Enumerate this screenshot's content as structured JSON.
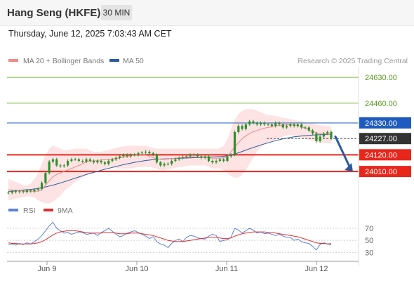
{
  "header": {
    "title": "Hang Seng (HKFE)",
    "timeframe": "30 MIN",
    "datetime": "Thursday, June 12, 2025 7:03:43 AM CET"
  },
  "legend": {
    "ma20_label": "MA 20 + Bollinger Bands",
    "ma50_label": "MA 50",
    "credit": "Research © 2025 Trading Central",
    "rsi_label": "RSI",
    "ma9_label": "9MA"
  },
  "colors": {
    "ma20": "#f08a8a",
    "ma50": "#2c5aa0",
    "bollinger_fill": "#fde3e3",
    "resistance": "#7cba3c",
    "pivot": "#1e5bbf",
    "support": "#e8261c",
    "current": "#333333",
    "candle": "#2f8f2f",
    "arrow": "#2c5aa0",
    "rsi": "#5b83d6",
    "rsi_ma": "#e03030"
  },
  "chart_data": [
    {
      "type": "candlestick",
      "title": "",
      "x_labels": [
        "Jun 9",
        "Jun 10",
        "Jun 11",
        "Jun 12"
      ],
      "ylim": [
        23830,
        24700
      ],
      "levels": [
        {
          "value": 24630,
          "label": "24630.00",
          "kind": "resistance"
        },
        {
          "value": 24460,
          "label": "24460.00",
          "kind": "resistance"
        },
        {
          "value": 24330,
          "label": "24330.00",
          "kind": "pivot"
        },
        {
          "value": 24227,
          "label": "24227.00",
          "kind": "current"
        },
        {
          "value": 24120,
          "label": "24120.00",
          "kind": "support"
        },
        {
          "value": 24010,
          "label": "24010.00",
          "kind": "support"
        }
      ],
      "close_series": [
        23870,
        23880,
        23875,
        23880,
        23875,
        23885,
        23880,
        23890,
        23895,
        23935,
        24000,
        24075,
        24090,
        24050,
        24045,
        24050,
        24080,
        24090,
        24090,
        24080,
        24075,
        24090,
        24080,
        24070,
        24080,
        24070,
        24060,
        24080,
        24090,
        24100,
        24110,
        24120,
        24110,
        24120,
        24120,
        24130,
        24135,
        24140,
        24130,
        24120,
        24070,
        24050,
        24060,
        24060,
        24080,
        24090,
        24100,
        24105,
        24110,
        24120,
        24120,
        24110,
        24100,
        24110,
        24080,
        24070,
        24080,
        24090,
        24080,
        24110,
        24120,
        24270,
        24310,
        24290,
        24320,
        24340,
        24330,
        24320,
        24330,
        24320,
        24320,
        24310,
        24330,
        24320,
        24300,
        24310,
        24320,
        24310,
        24320,
        24300,
        24300,
        24280,
        24260,
        24210,
        24240,
        24260,
        24270,
        24227
      ],
      "ma20": [
        23890,
        23888,
        23886,
        23884,
        23882,
        23881,
        23880,
        23880,
        23880,
        23890,
        23920,
        23950,
        23975,
        23990,
        24000,
        24010,
        24020,
        24030,
        24040,
        24050,
        24060,
        24075,
        24080,
        24080,
        24082,
        24085,
        24088,
        24090,
        24092,
        24095,
        24100,
        24105,
        24110,
        24115,
        24118,
        24120,
        24120,
        24118,
        24110,
        24100,
        24095,
        24090,
        24090,
        24092,
        24095,
        24098,
        24100,
        24102,
        24104,
        24105,
        24106,
        24106,
        24105,
        24104,
        24100,
        24098,
        24097,
        24098,
        24100,
        24110,
        24140,
        24170,
        24200,
        24225,
        24245,
        24260,
        24272,
        24280,
        24288,
        24295,
        24300,
        24305,
        24310,
        24313,
        24316,
        24318,
        24318,
        24316,
        24312,
        24305,
        24295,
        24285,
        24275,
        24265,
        24260,
        24258,
        24256,
        24254
      ],
      "ma50": [
        23880,
        23880,
        23882,
        23885,
        23888,
        23890,
        23892,
        23895,
        23898,
        23902,
        23908,
        23914,
        23920,
        23927,
        23934,
        23942,
        23950,
        23958,
        23966,
        23974,
        23982,
        23990,
        23997,
        24004,
        24011,
        24018,
        24025,
        24031,
        24037,
        24043,
        24049,
        24055,
        24060,
        24065,
        24070,
        24074,
        24078,
        24082,
        24085,
        24088,
        24090,
        24092,
        24093,
        24094,
        24095,
        24096,
        24097,
        24098,
        24099,
        24100,
        24101,
        24102,
        24103,
        24104,
        24105,
        24106,
        24107,
        24108,
        24110,
        24113,
        24118,
        24125,
        24133,
        24142,
        24151,
        24160,
        24168,
        24176,
        24184,
        24192,
        24199,
        24206,
        24213,
        24219,
        24225,
        24230,
        24234,
        24238,
        24241,
        24244,
        24246,
        24248,
        24250,
        24251,
        24252,
        24253,
        24254,
        24255
      ],
      "bb_upper": [
        23960,
        23950,
        23940,
        23930,
        23920,
        23920,
        23930,
        23960,
        24000,
        24060,
        24120,
        24160,
        24180,
        24170,
        24160,
        24150,
        24150,
        24155,
        24160,
        24160,
        24160,
        24160,
        24150,
        24140,
        24140,
        24140,
        24145,
        24150,
        24160,
        24165,
        24170,
        24175,
        24180,
        24180,
        24180,
        24180,
        24180,
        24180,
        24170,
        24165,
        24160,
        24160,
        24160,
        24160,
        24160,
        24160,
        24160,
        24160,
        24160,
        24160,
        24160,
        24160,
        24160,
        24160,
        24160,
        24160,
        24160,
        24165,
        24180,
        24220,
        24290,
        24350,
        24390,
        24410,
        24420,
        24420,
        24420,
        24410,
        24400,
        24390,
        24380,
        24380,
        24375,
        24370,
        24365,
        24360,
        24355,
        24350,
        24345,
        24340,
        24335,
        24330,
        24325,
        24320,
        24315,
        24312,
        24310,
        24308
      ],
      "bb_lower": [
        23820,
        23825,
        23830,
        23835,
        23840,
        23845,
        23845,
        23840,
        23820,
        23810,
        23800,
        23800,
        23810,
        23830,
        23850,
        23880,
        23900,
        23920,
        23940,
        23955,
        23970,
        23990,
        24000,
        24010,
        24020,
        24025,
        24030,
        24035,
        24035,
        24030,
        24030,
        24030,
        24030,
        24030,
        24035,
        24040,
        24040,
        24040,
        24040,
        24035,
        24030,
        24020,
        24020,
        24025,
        24030,
        24035,
        24040,
        24040,
        24045,
        24050,
        24050,
        24050,
        24050,
        24050,
        24040,
        24030,
        24030,
        24030,
        24020,
        24000,
        23980,
        23970,
        23970,
        23990,
        24020,
        24060,
        24100,
        24140,
        24170,
        24190,
        24200,
        24210,
        24220,
        24230,
        24240,
        24245,
        24250,
        24245,
        24240,
        24230,
        24225,
        24218,
        24212,
        24205,
        24200,
        24198,
        24196,
        24194
      ],
      "projection_arrow": {
        "from_value": 24240,
        "to_value": 24010
      }
    },
    {
      "type": "line",
      "title": "",
      "ylabel": "",
      "y_ticks": [
        70,
        50,
        30
      ],
      "ylim": [
        20,
        85
      ],
      "series": [
        {
          "name": "RSI",
          "values": [
            43,
            44,
            42,
            45,
            43,
            46,
            44,
            48,
            52,
            58,
            66,
            74,
            80,
            70,
            66,
            62,
            63,
            60,
            62,
            64,
            63,
            60,
            61,
            62,
            58,
            63,
            66,
            70,
            65,
            60,
            56,
            58,
            62,
            64,
            66,
            63,
            60,
            57,
            53,
            56,
            48,
            44,
            42,
            38,
            45,
            50,
            52,
            48,
            55,
            58,
            57,
            54,
            53,
            52,
            57,
            60,
            58,
            48,
            50,
            51,
            55,
            70,
            67,
            62,
            66,
            70,
            67,
            62,
            64,
            61,
            62,
            60,
            58,
            60,
            57,
            55,
            55,
            50,
            52,
            48,
            46,
            45,
            40,
            34,
            43,
            46,
            44,
            45
          ]
        },
        {
          "name": "9MA",
          "values": [
            46,
            45,
            45,
            44,
            44,
            44,
            44,
            45,
            46,
            48,
            51,
            55,
            59,
            62,
            64,
            65,
            66,
            66,
            66,
            65,
            64,
            63,
            62,
            62,
            62,
            62,
            63,
            63,
            63,
            62,
            61,
            61,
            61,
            62,
            62,
            62,
            61,
            60,
            59,
            58,
            56,
            54,
            52,
            50,
            49,
            48,
            48,
            48,
            49,
            50,
            51,
            52,
            53,
            54,
            55,
            55,
            55,
            54,
            53,
            53,
            54,
            57,
            59,
            61,
            62,
            63,
            64,
            64,
            64,
            64,
            63,
            63,
            62,
            61,
            60,
            59,
            58,
            57,
            56,
            54,
            52,
            50,
            48,
            46,
            45,
            45,
            44,
            43
          ]
        }
      ]
    }
  ]
}
